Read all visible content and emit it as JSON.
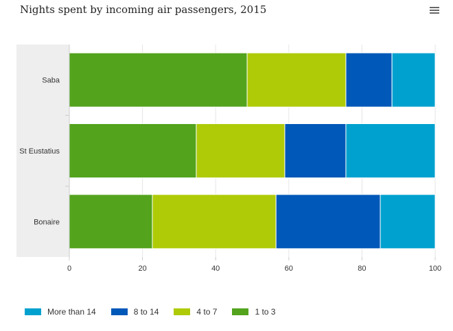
{
  "header": {
    "title": "Nights spent by incoming air passengers, 2015",
    "menu_icon": "hamburger-menu-icon"
  },
  "chart_data": {
    "type": "bar",
    "orientation": "horizontal",
    "stacking": "percent",
    "title": "Nights spent by incoming air passengers, 2015",
    "categories": [
      "Saba",
      "St Eustatius",
      "Bonaire"
    ],
    "series": [
      {
        "name": "More than 14",
        "color": "#00A1CF",
        "values": [
          11.8,
          24.4,
          15.0
        ]
      },
      {
        "name": "8 to 14",
        "color": "#0058B8",
        "values": [
          12.6,
          16.7,
          28.5
        ]
      },
      {
        "name": "4 to 7",
        "color": "#AFCB08",
        "values": [
          27.0,
          24.2,
          33.8
        ]
      },
      {
        "name": "1 to 3",
        "color": "#53A31D",
        "values": [
          48.6,
          34.7,
          22.7
        ]
      }
    ],
    "xlim": [
      0,
      100
    ],
    "xticks": [
      "0",
      "20",
      "40",
      "60",
      "80",
      "100"
    ],
    "grid": true,
    "legend": "bottom-left"
  }
}
